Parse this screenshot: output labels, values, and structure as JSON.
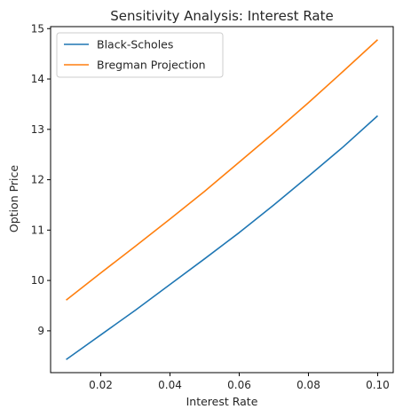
{
  "chart_data": {
    "type": "line",
    "title": "Sensitivity Analysis: Interest Rate",
    "xlabel": "Interest Rate",
    "ylabel": "Option Price",
    "xlim": [
      0.0055,
      0.1045
    ],
    "ylim": [
      8.17,
      15.04
    ],
    "xticks": [
      0.02,
      0.04,
      0.06,
      0.08,
      0.1
    ],
    "xtick_labels": [
      "0.02",
      "0.04",
      "0.06",
      "0.08",
      "0.10"
    ],
    "yticks": [
      9,
      10,
      11,
      12,
      13,
      14,
      15
    ],
    "ytick_labels": [
      "9",
      "10",
      "11",
      "12",
      "13",
      "14",
      "15"
    ],
    "grid": false,
    "legend_position": "top-left",
    "x": [
      0.01,
      0.02,
      0.03,
      0.04,
      0.05,
      0.06,
      0.07,
      0.08,
      0.09,
      0.1
    ],
    "series": [
      {
        "name": "Black-Scholes",
        "color": "#1f77b4",
        "values": [
          8.43,
          8.92,
          9.41,
          9.92,
          10.43,
          10.95,
          11.5,
          12.07,
          12.65,
          13.27
        ]
      },
      {
        "name": "Bregman Projection",
        "color": "#ff7f0e",
        "values": [
          9.61,
          10.15,
          10.68,
          11.22,
          11.77,
          12.35,
          12.93,
          13.53,
          14.15,
          14.78
        ]
      }
    ]
  }
}
